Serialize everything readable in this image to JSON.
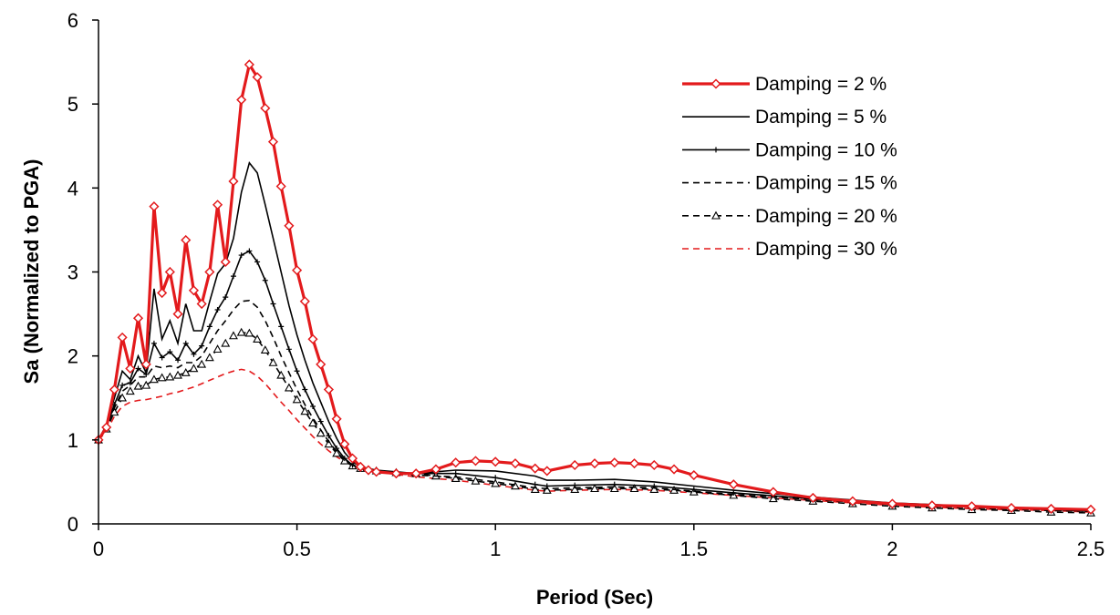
{
  "chart_data": {
    "type": "line",
    "xlabel": "Period (Sec)",
    "ylabel": "Sa  (Normalized to PGA)",
    "xlim": [
      0,
      2.5
    ],
    "ylim": [
      0,
      6
    ],
    "xticks": [
      "0",
      "0.5",
      "1",
      "1.5",
      "2",
      "2.5"
    ],
    "yticks": [
      "0",
      "1",
      "2",
      "3",
      "4",
      "5",
      "6"
    ],
    "grid": false,
    "legend_position": "top-right",
    "series": [
      {
        "name": "Damping = 2 %",
        "color": "#e31a1c",
        "style": "solid-thick",
        "marker": "diamond",
        "x": [
          0,
          0.02,
          0.04,
          0.06,
          0.08,
          0.1,
          0.12,
          0.14,
          0.16,
          0.18,
          0.2,
          0.22,
          0.24,
          0.26,
          0.28,
          0.3,
          0.32,
          0.34,
          0.36,
          0.38,
          0.4,
          0.42,
          0.44,
          0.46,
          0.48,
          0.5,
          0.52,
          0.54,
          0.56,
          0.58,
          0.6,
          0.62,
          0.64,
          0.66,
          0.68,
          0.7,
          0.75,
          0.8,
          0.85,
          0.9,
          0.95,
          1.0,
          1.05,
          1.1,
          1.13,
          1.2,
          1.25,
          1.3,
          1.35,
          1.4,
          1.45,
          1.5,
          1.6,
          1.7,
          1.8,
          1.9,
          2.0,
          2.1,
          2.2,
          2.3,
          2.4,
          2.5
        ],
        "y": [
          1.0,
          1.15,
          1.6,
          2.22,
          1.85,
          2.45,
          1.9,
          3.78,
          2.75,
          3.0,
          2.5,
          3.38,
          2.78,
          2.62,
          3.0,
          3.8,
          3.12,
          4.08,
          5.05,
          5.47,
          5.32,
          4.95,
          4.55,
          4.02,
          3.55,
          3.02,
          2.65,
          2.2,
          1.9,
          1.6,
          1.25,
          0.95,
          0.78,
          0.68,
          0.64,
          0.62,
          0.6,
          0.6,
          0.65,
          0.73,
          0.75,
          0.74,
          0.72,
          0.66,
          0.63,
          0.7,
          0.72,
          0.73,
          0.72,
          0.7,
          0.65,
          0.58,
          0.47,
          0.38,
          0.31,
          0.27,
          0.24,
          0.22,
          0.21,
          0.19,
          0.18,
          0.17
        ]
      },
      {
        "name": "Damping = 5 %",
        "color": "#000000",
        "style": "solid",
        "marker": "none",
        "x": [
          0,
          0.02,
          0.04,
          0.06,
          0.08,
          0.1,
          0.12,
          0.14,
          0.16,
          0.18,
          0.2,
          0.22,
          0.24,
          0.26,
          0.28,
          0.3,
          0.32,
          0.34,
          0.36,
          0.38,
          0.4,
          0.42,
          0.44,
          0.46,
          0.48,
          0.5,
          0.52,
          0.54,
          0.56,
          0.58,
          0.6,
          0.62,
          0.64,
          0.66,
          0.7,
          0.8,
          0.9,
          1.0,
          1.1,
          1.13,
          1.2,
          1.3,
          1.4,
          1.5,
          1.6,
          1.8,
          2.0,
          2.2,
          2.4,
          2.5
        ],
        "y": [
          1.0,
          1.18,
          1.5,
          1.82,
          1.72,
          2.0,
          1.8,
          2.8,
          2.2,
          2.42,
          2.15,
          2.62,
          2.3,
          2.3,
          2.65,
          2.98,
          3.1,
          3.4,
          3.95,
          4.3,
          4.18,
          3.8,
          3.4,
          3.0,
          2.6,
          2.25,
          1.95,
          1.68,
          1.45,
          1.22,
          1.02,
          0.85,
          0.74,
          0.68,
          0.64,
          0.6,
          0.64,
          0.63,
          0.57,
          0.52,
          0.52,
          0.53,
          0.5,
          0.45,
          0.4,
          0.32,
          0.25,
          0.21,
          0.18,
          0.16
        ]
      },
      {
        "name": "Damping = 10 %",
        "color": "#000000",
        "style": "solid",
        "marker": "plus",
        "x": [
          0,
          0.02,
          0.04,
          0.06,
          0.08,
          0.1,
          0.12,
          0.14,
          0.16,
          0.18,
          0.2,
          0.22,
          0.24,
          0.26,
          0.28,
          0.3,
          0.32,
          0.34,
          0.36,
          0.38,
          0.4,
          0.42,
          0.44,
          0.46,
          0.48,
          0.5,
          0.52,
          0.54,
          0.56,
          0.58,
          0.6,
          0.62,
          0.64,
          0.66,
          0.7,
          0.8,
          0.9,
          1.0,
          1.1,
          1.13,
          1.2,
          1.3,
          1.4,
          1.5,
          1.6,
          1.8,
          2.0,
          2.2,
          2.4,
          2.5
        ],
        "y": [
          1.0,
          1.17,
          1.42,
          1.65,
          1.68,
          1.85,
          1.78,
          2.15,
          1.98,
          2.05,
          1.95,
          2.15,
          2.02,
          2.12,
          2.35,
          2.55,
          2.7,
          2.95,
          3.2,
          3.25,
          3.12,
          2.9,
          2.62,
          2.35,
          2.08,
          1.82,
          1.6,
          1.4,
          1.22,
          1.05,
          0.9,
          0.78,
          0.7,
          0.66,
          0.62,
          0.6,
          0.6,
          0.55,
          0.47,
          0.45,
          0.46,
          0.47,
          0.45,
          0.41,
          0.37,
          0.3,
          0.24,
          0.2,
          0.17,
          0.15
        ]
      },
      {
        "name": "Damping = 15 %",
        "color": "#000000",
        "style": "dashed",
        "marker": "none",
        "x": [
          0,
          0.02,
          0.04,
          0.06,
          0.08,
          0.1,
          0.12,
          0.14,
          0.16,
          0.18,
          0.2,
          0.22,
          0.24,
          0.26,
          0.28,
          0.3,
          0.32,
          0.34,
          0.36,
          0.38,
          0.4,
          0.42,
          0.44,
          0.46,
          0.48,
          0.5,
          0.52,
          0.54,
          0.56,
          0.58,
          0.6,
          0.62,
          0.64,
          0.66,
          0.7,
          0.8,
          0.9,
          1.0,
          1.1,
          1.13,
          1.2,
          1.3,
          1.4,
          1.5,
          1.6,
          1.8,
          2.0,
          2.2,
          2.4,
          2.5
        ],
        "y": [
          1.0,
          1.15,
          1.38,
          1.58,
          1.65,
          1.75,
          1.75,
          1.88,
          1.86,
          1.88,
          1.86,
          1.92,
          1.92,
          2.0,
          2.15,
          2.3,
          2.42,
          2.55,
          2.65,
          2.66,
          2.58,
          2.42,
          2.22,
          2.0,
          1.8,
          1.6,
          1.42,
          1.26,
          1.12,
          0.98,
          0.86,
          0.76,
          0.7,
          0.66,
          0.62,
          0.58,
          0.56,
          0.5,
          0.43,
          0.42,
          0.43,
          0.44,
          0.43,
          0.39,
          0.35,
          0.29,
          0.23,
          0.19,
          0.16,
          0.15
        ]
      },
      {
        "name": "Damping = 20 %",
        "color": "#000000",
        "style": "dashed",
        "marker": "triangle",
        "x": [
          0,
          0.02,
          0.04,
          0.06,
          0.08,
          0.1,
          0.12,
          0.14,
          0.16,
          0.18,
          0.2,
          0.22,
          0.24,
          0.26,
          0.28,
          0.3,
          0.32,
          0.34,
          0.36,
          0.38,
          0.4,
          0.42,
          0.44,
          0.46,
          0.48,
          0.5,
          0.52,
          0.54,
          0.56,
          0.58,
          0.6,
          0.62,
          0.64,
          0.66,
          0.7,
          0.75,
          0.8,
          0.85,
          0.9,
          0.95,
          1.0,
          1.05,
          1.1,
          1.13,
          1.2,
          1.25,
          1.3,
          1.35,
          1.4,
          1.45,
          1.5,
          1.6,
          1.7,
          1.8,
          1.9,
          2.0,
          2.1,
          2.2,
          2.3,
          2.4,
          2.5
        ],
        "y": [
          1.0,
          1.13,
          1.33,
          1.5,
          1.58,
          1.64,
          1.65,
          1.72,
          1.74,
          1.75,
          1.77,
          1.8,
          1.85,
          1.9,
          1.98,
          2.08,
          2.15,
          2.24,
          2.28,
          2.27,
          2.2,
          2.07,
          1.92,
          1.77,
          1.62,
          1.48,
          1.34,
          1.2,
          1.08,
          0.95,
          0.84,
          0.75,
          0.69,
          0.66,
          0.63,
          0.61,
          0.6,
          0.57,
          0.54,
          0.51,
          0.48,
          0.45,
          0.41,
          0.4,
          0.41,
          0.42,
          0.42,
          0.42,
          0.41,
          0.4,
          0.38,
          0.34,
          0.3,
          0.27,
          0.24,
          0.21,
          0.19,
          0.17,
          0.16,
          0.14,
          0.13
        ]
      },
      {
        "name": "Damping = 30 %",
        "color": "#e31a1c",
        "style": "dashed",
        "marker": "none",
        "x": [
          0,
          0.02,
          0.04,
          0.06,
          0.08,
          0.1,
          0.12,
          0.14,
          0.16,
          0.18,
          0.2,
          0.22,
          0.24,
          0.26,
          0.28,
          0.3,
          0.32,
          0.34,
          0.36,
          0.38,
          0.4,
          0.42,
          0.44,
          0.46,
          0.48,
          0.5,
          0.52,
          0.54,
          0.56,
          0.58,
          0.6,
          0.62,
          0.64,
          0.66,
          0.7,
          0.8,
          0.9,
          1.0,
          1.1,
          1.13,
          1.2,
          1.3,
          1.4,
          1.5,
          1.6,
          1.8,
          2.0,
          2.2,
          2.4,
          2.5
        ],
        "y": [
          1.0,
          1.1,
          1.28,
          1.4,
          1.45,
          1.47,
          1.48,
          1.5,
          1.52,
          1.55,
          1.57,
          1.6,
          1.63,
          1.67,
          1.71,
          1.75,
          1.79,
          1.82,
          1.84,
          1.82,
          1.76,
          1.67,
          1.56,
          1.45,
          1.35,
          1.24,
          1.14,
          1.04,
          0.95,
          0.87,
          0.8,
          0.74,
          0.7,
          0.66,
          0.62,
          0.56,
          0.52,
          0.46,
          0.4,
          0.39,
          0.4,
          0.41,
          0.4,
          0.37,
          0.34,
          0.28,
          0.22,
          0.18,
          0.16,
          0.14
        ]
      }
    ]
  }
}
